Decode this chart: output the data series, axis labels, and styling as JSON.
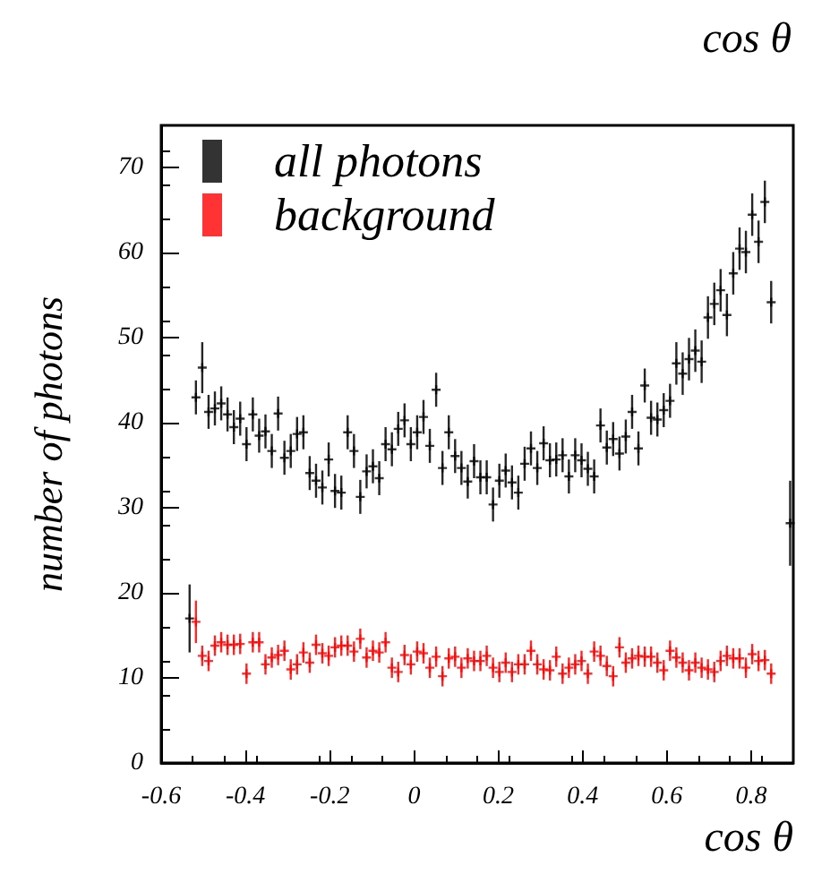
{
  "chart_data": {
    "type": "scatter",
    "xlabel": "cos θ",
    "ylabel": "number of photons",
    "xlim": [
      -0.6,
      0.9
    ],
    "ylim": [
      0,
      75
    ],
    "xticks": [
      -0.6,
      -0.4,
      -0.2,
      0,
      0.2,
      0.4,
      0.6,
      0.8
    ],
    "yticks": [
      0,
      10,
      20,
      30,
      40,
      50,
      60,
      70
    ],
    "grid": false,
    "legend": "top left",
    "marker": "cross",
    "annotations": [
      "cos θ"
    ],
    "series": [
      {
        "name": "all photons",
        "color": "#000000",
        "x": [
          -0.5325,
          -0.5175,
          -0.5025,
          -0.4875,
          -0.4725,
          -0.4575,
          -0.4425,
          -0.4275,
          -0.4125,
          -0.3975,
          -0.3825,
          -0.3675,
          -0.3525,
          -0.3375,
          -0.3225,
          -0.3075,
          -0.2925,
          -0.2775,
          -0.2625,
          -0.2475,
          -0.2325,
          -0.2175,
          -0.2025,
          -0.1875,
          -0.1725,
          -0.1575,
          -0.1425,
          -0.1275,
          -0.1125,
          -0.0975,
          -0.0825,
          -0.0675,
          -0.0525,
          -0.0375,
          -0.0225,
          -0.0075,
          0.0075,
          0.0225,
          0.0375,
          0.0525,
          0.0675,
          0.0825,
          0.0975,
          0.1125,
          0.1275,
          0.1425,
          0.1575,
          0.1725,
          0.1875,
          0.2025,
          0.2175,
          0.2325,
          0.2475,
          0.2625,
          0.2775,
          0.2925,
          0.3075,
          0.3225,
          0.3375,
          0.3525,
          0.3675,
          0.3825,
          0.3975,
          0.4125,
          0.4275,
          0.4425,
          0.4575,
          0.4725,
          0.4875,
          0.5025,
          0.5175,
          0.5325,
          0.5475,
          0.5625,
          0.5775,
          0.5925,
          0.6075,
          0.6225,
          0.6375,
          0.6525,
          0.6675,
          0.6825,
          0.6975,
          0.7125,
          0.7275,
          0.7425,
          0.7575,
          0.7725,
          0.7875,
          0.8025,
          0.8175,
          0.8325,
          0.8475,
          0.8925
        ],
        "values": [
          17,
          43,
          46.5,
          41.3,
          41.7,
          42.3,
          41,
          39.5,
          40.5,
          37.5,
          41,
          38.5,
          39,
          36.7,
          41.1,
          35.9,
          36.7,
          38.7,
          38.9,
          34.1,
          33.2,
          32.4,
          35.7,
          32,
          31.8,
          38.9,
          36.7,
          31.3,
          34.3,
          34.9,
          33.5,
          37.5,
          36.9,
          39.3,
          40.3,
          37.5,
          38.9,
          40.7,
          37.3,
          43.9,
          34.7,
          38.9,
          36.1,
          34.7,
          33.1,
          35.5,
          33.6,
          33.6,
          30.4,
          33.2,
          34.4,
          33,
          31.8,
          35.2,
          37,
          34.7,
          37.6,
          35.6,
          35.7,
          36.2,
          33.7,
          36.2,
          35.6,
          34.6,
          33.7,
          39.7,
          37.1,
          38.1,
          36.4,
          38.4,
          41.3,
          37,
          44.4,
          40.6,
          40.4,
          41.5,
          42.6,
          47,
          45.8,
          47.5,
          48.5,
          47.2,
          52.4,
          54,
          55.6,
          52.7,
          57.6,
          60.5,
          60.1,
          64.5,
          61.3,
          66,
          54.2,
          28.2
        ],
        "errors": [
          4,
          2,
          3,
          2,
          2,
          2,
          2,
          2,
          2,
          2,
          2,
          2,
          2,
          2,
          2,
          2,
          2,
          2,
          2,
          2,
          2,
          2,
          2,
          2,
          2,
          2,
          2,
          2,
          2,
          2,
          2,
          2,
          2,
          2,
          2,
          2,
          2,
          2,
          2,
          2,
          2,
          2,
          2,
          2,
          2,
          2,
          2,
          2,
          2,
          2,
          2,
          2,
          2,
          2,
          2,
          2,
          2,
          2,
          2,
          2,
          2,
          2,
          2,
          2,
          2,
          2,
          2,
          2,
          2,
          2,
          2,
          2,
          2,
          2,
          2,
          2,
          2,
          2.5,
          2.5,
          2.5,
          2.5,
          2.5,
          2.5,
          2.5,
          2.5,
          2.5,
          2.5,
          2.5,
          2.5,
          2.5,
          2.5,
          2.5,
          2.5,
          5
        ]
      },
      {
        "name": "background",
        "color": "#ff0000",
        "x": [
          -0.5175,
          -0.5025,
          -0.4875,
          -0.4725,
          -0.4575,
          -0.4425,
          -0.4275,
          -0.4125,
          -0.3975,
          -0.3825,
          -0.3675,
          -0.3525,
          -0.3375,
          -0.3225,
          -0.3075,
          -0.2925,
          -0.2775,
          -0.2625,
          -0.2475,
          -0.2325,
          -0.2175,
          -0.2025,
          -0.1875,
          -0.1725,
          -0.1575,
          -0.1425,
          -0.1275,
          -0.1125,
          -0.0975,
          -0.0825,
          -0.0675,
          -0.0525,
          -0.0375,
          -0.0225,
          -0.0075,
          0.0075,
          0.0225,
          0.0375,
          0.0525,
          0.0675,
          0.0825,
          0.0975,
          0.1125,
          0.1275,
          0.1425,
          0.1575,
          0.1725,
          0.1875,
          0.2025,
          0.2175,
          0.2325,
          0.2475,
          0.2625,
          0.2775,
          0.2925,
          0.3075,
          0.3225,
          0.3375,
          0.3525,
          0.3675,
          0.3825,
          0.3975,
          0.4125,
          0.4275,
          0.4425,
          0.4575,
          0.4725,
          0.4875,
          0.5025,
          0.5175,
          0.5325,
          0.5475,
          0.5625,
          0.5775,
          0.5925,
          0.6075,
          0.6225,
          0.6375,
          0.6525,
          0.6675,
          0.6825,
          0.6975,
          0.7125,
          0.7275,
          0.7425,
          0.7575,
          0.7725,
          0.7875,
          0.8025,
          0.8175,
          0.8325,
          0.8475
        ],
        "values": [
          16.6,
          12.6,
          12,
          13.8,
          14.2,
          13.9,
          13.9,
          14,
          10.5,
          14.2,
          14.2,
          11.6,
          12.4,
          12.7,
          13.2,
          11,
          11.6,
          13,
          11.8,
          13.9,
          12.9,
          12.6,
          13.6,
          13.8,
          13.8,
          13.1,
          14.6,
          12.4,
          13.2,
          13,
          14.2,
          11.2,
          10.7,
          12.7,
          11.6,
          13.1,
          12.9,
          11.2,
          12.5,
          10.2,
          12.3,
          12.5,
          11.2,
          12.3,
          12,
          12,
          12.6,
          11.2,
          10.7,
          11.8,
          10.7,
          11.6,
          11.6,
          13.2,
          11.6,
          11,
          10.9,
          12.5,
          10.5,
          11.2,
          11.6,
          12,
          10.5,
          13.1,
          12.6,
          11.4,
          10.2,
          13.6,
          11.8,
          12.3,
          12.6,
          12.5,
          12.5,
          11.8,
          10.9,
          13.2,
          12.4,
          11.8,
          10.9,
          11.8,
          11.2,
          11,
          10.7,
          12,
          12.6,
          12.3,
          12.3,
          11.2,
          12.8,
          12,
          12.1,
          10.5
        ],
        "errors": [
          2.5,
          1.2,
          1.2,
          1.2,
          1.2,
          1.2,
          1.2,
          1.2,
          1.2,
          1.2,
          1.2,
          1.2,
          1.2,
          1.2,
          1.2,
          1.2,
          1.2,
          1.2,
          1.2,
          1.2,
          1.2,
          1.2,
          1.2,
          1.2,
          1.2,
          1.2,
          1.2,
          1.2,
          1.2,
          1.2,
          1.2,
          1.2,
          1.2,
          1.2,
          1.2,
          1.2,
          1.2,
          1.2,
          1.2,
          1.2,
          1.2,
          1.2,
          1.2,
          1.2,
          1.2,
          1.2,
          1.2,
          1.2,
          1.2,
          1.2,
          1.2,
          1.2,
          1.2,
          1.2,
          1.2,
          1.2,
          1.2,
          1.2,
          1.2,
          1.2,
          1.2,
          1.2,
          1.2,
          1.2,
          1.2,
          1.2,
          1.2,
          1.2,
          1.2,
          1.2,
          1.2,
          1.2,
          1.2,
          1.2,
          1.2,
          1.2,
          1.2,
          1.2,
          1.2,
          1.2,
          1.2,
          1.2,
          1.2,
          1.2,
          1.2,
          1.2,
          1.2,
          1.2,
          1.2,
          1.2,
          1.2,
          1.2
        ]
      }
    ]
  }
}
